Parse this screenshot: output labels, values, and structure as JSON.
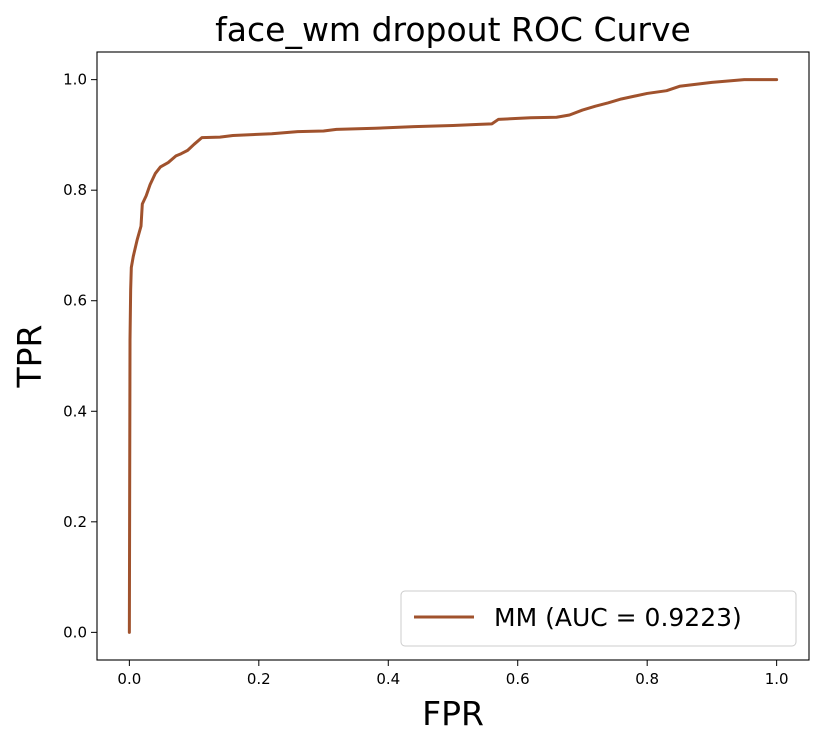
{
  "chart_data": {
    "type": "line",
    "title": "face_wm dropout ROC Curve",
    "xlabel": "FPR",
    "ylabel": "TPR",
    "xlim": [
      -0.05,
      1.05
    ],
    "ylim": [
      -0.05,
      1.05
    ],
    "xticks": [
      "0.0",
      "0.2",
      "0.4",
      "0.6",
      "0.8",
      "1.0"
    ],
    "yticks": [
      "0.0",
      "0.2",
      "0.4",
      "0.6",
      "0.8",
      "1.0"
    ],
    "grid": false,
    "legend_position": "lower-right",
    "series": [
      {
        "name": "MM (AUC = 0.9223)",
        "color": "#a0522d",
        "x": [
          0.0,
          0.001,
          0.002,
          0.003,
          0.006,
          0.012,
          0.018,
          0.02,
          0.026,
          0.032,
          0.04,
          0.048,
          0.06,
          0.072,
          0.08,
          0.09,
          0.1,
          0.112,
          0.14,
          0.16,
          0.22,
          0.26,
          0.3,
          0.32,
          0.38,
          0.44,
          0.5,
          0.54,
          0.56,
          0.57,
          0.6,
          0.62,
          0.66,
          0.68,
          0.7,
          0.72,
          0.74,
          0.76,
          0.8,
          0.83,
          0.85,
          0.9,
          0.95,
          1.0
        ],
        "y": [
          0.0,
          0.53,
          0.62,
          0.66,
          0.68,
          0.71,
          0.735,
          0.775,
          0.79,
          0.81,
          0.83,
          0.842,
          0.85,
          0.862,
          0.866,
          0.872,
          0.883,
          0.895,
          0.896,
          0.899,
          0.902,
          0.906,
          0.907,
          0.91,
          0.912,
          0.915,
          0.917,
          0.919,
          0.92,
          0.928,
          0.93,
          0.931,
          0.932,
          0.936,
          0.945,
          0.952,
          0.958,
          0.965,
          0.975,
          0.98,
          0.988,
          0.995,
          1.0,
          1.0
        ]
      }
    ]
  }
}
